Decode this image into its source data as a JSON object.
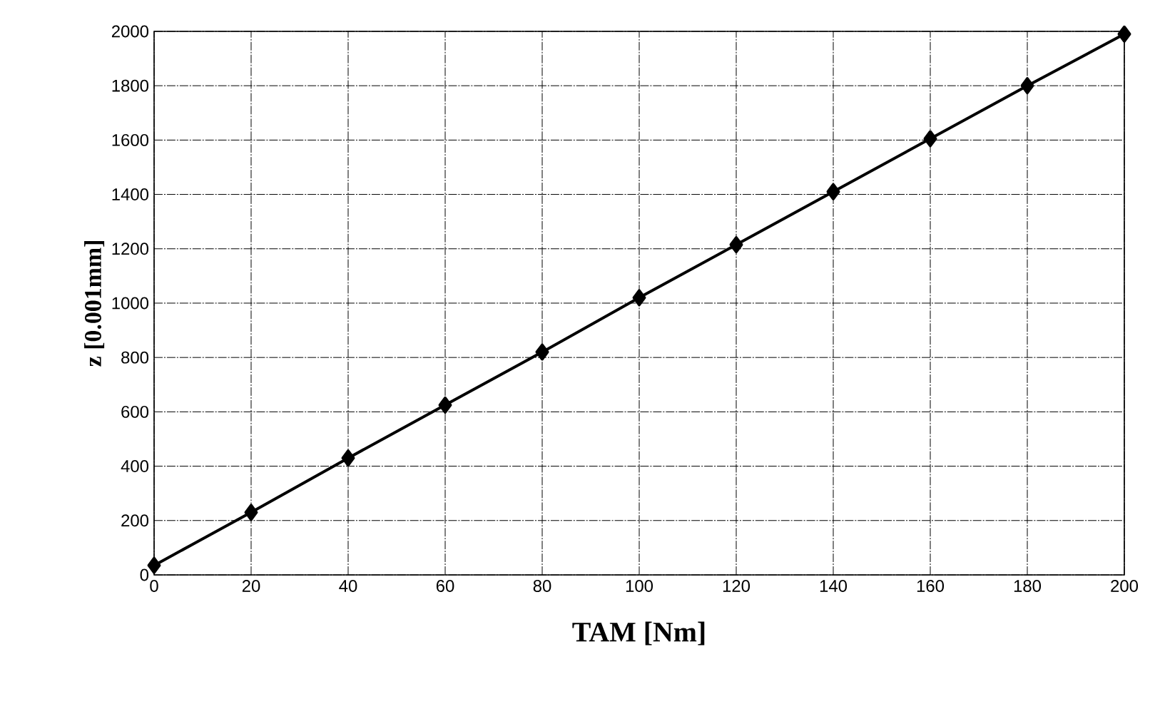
{
  "chart_data": {
    "type": "line",
    "xlabel": "TAM [Nm]",
    "ylabel": "z [0.001mm]",
    "x": [
      0,
      20,
      40,
      60,
      80,
      100,
      120,
      140,
      160,
      180,
      200
    ],
    "series": [
      {
        "color": "#000000",
        "values": [
          35,
          230,
          430,
          625,
          820,
          1020,
          1215,
          1410,
          1605,
          1800,
          1990
        ]
      }
    ],
    "xlim": [
      0,
      200
    ],
    "xticks": [
      0,
      20,
      40,
      60,
      80,
      100,
      120,
      140,
      160,
      180,
      200
    ],
    "ylim": [
      0,
      2000
    ],
    "yticks": [
      0,
      200,
      400,
      600,
      800,
      1000,
      1200,
      1400,
      1600,
      1800,
      2000
    ],
    "grid": true,
    "marker": "diamond",
    "line_style": "solid"
  }
}
